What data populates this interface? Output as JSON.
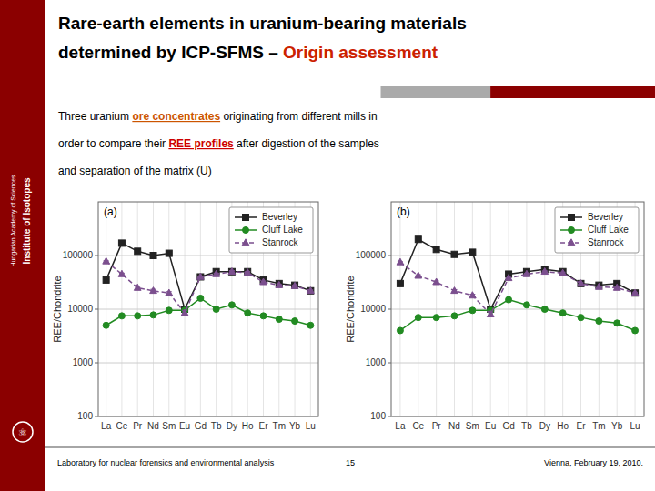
{
  "title": "Rare-earth elements in uranium-bearing materials",
  "subtitle": [
    {
      "text": "determined by ICP-SFMS – "
    },
    {
      "text": "Origin assessment",
      "color": "#cc2200"
    }
  ],
  "annotations": [
    [
      {
        "text": "Three uranium "
      },
      {
        "text": "ore concentrates",
        "color": "#cc5500"
      },
      {
        "text": " originating from different mills in"
      }
    ],
    [
      {
        "text": "order to compare their "
      },
      {
        "text": "REE profiles",
        "color": "#cc0000"
      },
      {
        "text": " after digestion of the samples"
      }
    ],
    [
      {
        "text": "and separation of the matrix (U)"
      }
    ]
  ],
  "sidebar": [
    "Institute of Isotopes",
    "Hungarian Academy of Sciences",
    "⚛"
  ],
  "footer": [
    "Laboratory for nuclear forensics and environmental analysis",
    "15",
    "Vienna, February 19, 2010."
  ],
  "chart_data": [
    {
      "type": "line",
      "title": "(a)",
      "y_label": "REE/Chondrite",
      "categories": [
        "La",
        "Ce",
        "Pr",
        "Nd",
        "Sm",
        "Eu",
        "Gd",
        "Tb",
        "Dy",
        "Ho",
        "Er",
        "Tm",
        "Yb",
        "Lu"
      ],
      "series": [
        {
          "name": "Beverley",
          "color": "#222222",
          "marker": "square",
          "line_style": "solid",
          "values": [
            35000,
            170000,
            120000,
            100000,
            110000,
            10000,
            40000,
            50000,
            50000,
            50000,
            35000,
            30000,
            28000,
            22000
          ],
          "errors": [
            3000,
            5000,
            4000,
            8000,
            6000,
            1000,
            0,
            3000,
            3000,
            2000,
            2000,
            1500,
            1500,
            1000
          ]
        },
        {
          "name": "Cluff Lake",
          "color": "#228B22",
          "marker": "circle",
          "line_style": "solid",
          "values": [
            5000,
            7500,
            7500,
            7800,
            9500,
            9500,
            16000,
            10000,
            12000,
            8500,
            7500,
            6500,
            6000,
            5000
          ]
        },
        {
          "name": "Stanrock",
          "color": "#7B4F8E",
          "marker": "triangle",
          "line_style": "dashed",
          "values": [
            78000,
            45000,
            25000,
            22000,
            20000,
            8500,
            40000,
            45000,
            50000,
            48000,
            32000,
            28000,
            27000,
            22000
          ],
          "errors": [
            2000,
            2000,
            1500,
            1500,
            1200,
            1000,
            0,
            2000,
            2500,
            2500,
            1500,
            1200,
            1000,
            800
          ]
        }
      ],
      "log": "y",
      "ylim": [
        100,
        1000000
      ],
      "yticks": [
        100,
        1000,
        10000,
        100000
      ],
      "grid": true,
      "legend": "upper right"
    },
    {
      "type": "line",
      "title": "(b)",
      "y_label": "REE/Chondrite",
      "categories": [
        "La",
        "Ce",
        "Pr",
        "Nd",
        "Sm",
        "Eu",
        "Gd",
        "Tb",
        "Dy",
        "Ho",
        "Er",
        "Tm",
        "Yb",
        "Lu"
      ],
      "series": [
        {
          "name": "Beverley",
          "color": "#222222",
          "marker": "square",
          "line_style": "solid",
          "values": [
            30000,
            200000,
            130000,
            105000,
            115000,
            10000,
            45000,
            50000,
            55000,
            50000,
            30000,
            28000,
            30000,
            20000
          ],
          "errors": [
            2500,
            4000,
            4000,
            7000,
            6000,
            1000,
            0,
            2500,
            2500,
            2000,
            1500,
            1200,
            1500,
            800
          ]
        },
        {
          "name": "Cluff Lake",
          "color": "#228B22",
          "marker": "circle",
          "line_style": "solid",
          "values": [
            4000,
            7000,
            7000,
            7500,
            9500,
            9500,
            15000,
            12000,
            10000,
            8500,
            7000,
            6000,
            5500,
            4000
          ]
        },
        {
          "name": "Stanrock",
          "color": "#7B4F8E",
          "marker": "triangle",
          "line_style": "dashed",
          "values": [
            75000,
            42000,
            32000,
            22000,
            18000,
            8000,
            38000,
            45000,
            50000,
            47000,
            30000,
            26000,
            25000,
            20000
          ],
          "errors": [
            2000,
            1800,
            1500,
            1200,
            1000,
            800,
            0,
            1800,
            2000,
            2000,
            1200,
            1000,
            900,
            700
          ]
        }
      ],
      "log": "y",
      "ylim": [
        100,
        1000000
      ],
      "yticks": [
        100,
        1000,
        10000,
        100000
      ],
      "grid": true,
      "legend": "upper right"
    }
  ]
}
